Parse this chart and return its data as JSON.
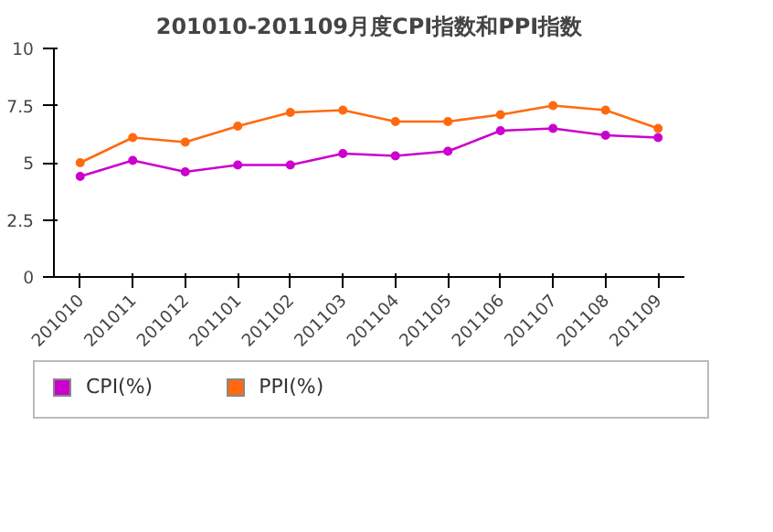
{
  "chart_data": {
    "type": "line",
    "title": "201010-201109月度CPI指数和PPI指数",
    "categories": [
      "201010",
      "201011",
      "201012",
      "201101",
      "201102",
      "201103",
      "201104",
      "201105",
      "201106",
      "201107",
      "201108",
      "201109"
    ],
    "series": [
      {
        "name": "CPI(%)",
        "color": "#cc00cc",
        "values": [
          4.4,
          5.1,
          4.6,
          4.9,
          4.9,
          5.4,
          5.3,
          5.5,
          6.4,
          6.5,
          6.2,
          6.1
        ]
      },
      {
        "name": "PPI(%)",
        "color": "#ff6a10",
        "values": [
          5.0,
          6.1,
          5.9,
          6.6,
          7.2,
          7.3,
          6.8,
          6.8,
          7.1,
          7.5,
          7.3,
          6.5
        ]
      }
    ],
    "ylim": [
      0,
      10
    ],
    "yticks": [
      0,
      {
        "value": 2.5,
        "label": "2.5"
      },
      5,
      {
        "value": 7.5,
        "label": "7.5"
      },
      10
    ],
    "grid": false,
    "legend": "bottom",
    "marker": "circle",
    "line_style": "solid"
  }
}
